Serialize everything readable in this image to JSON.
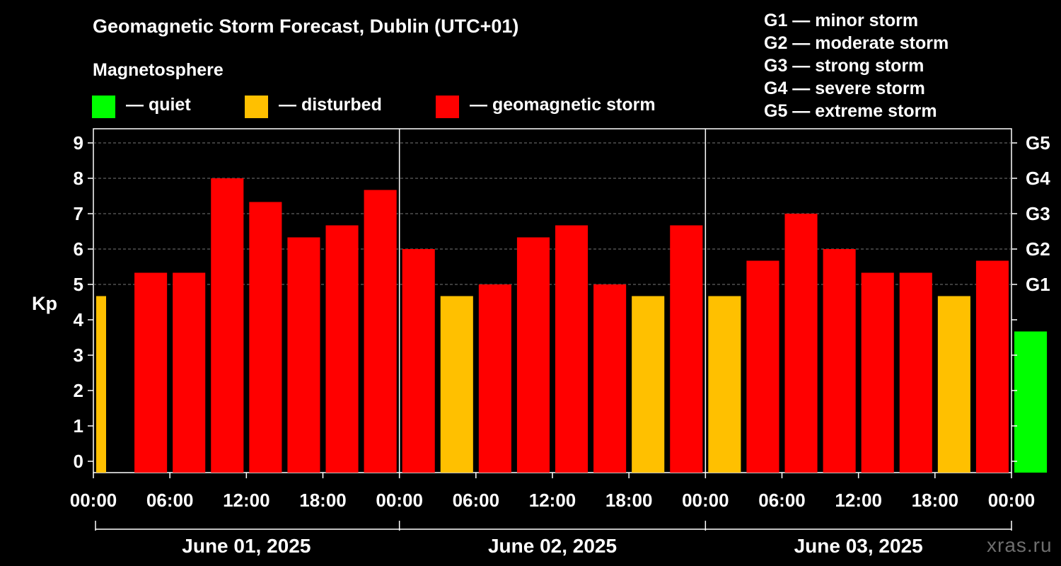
{
  "chart_data": {
    "type": "bar",
    "title": "Geomagnetic Storm Forecast, Dublin (UTC+01)",
    "ylabel": "Kp",
    "ylim": [
      0,
      9
    ],
    "yticks": [
      "0",
      "1",
      "2",
      "3",
      "4",
      "5",
      "6",
      "7",
      "8",
      "9"
    ],
    "right_ticks": [
      {
        "value": 5,
        "label": "G1"
      },
      {
        "value": 6,
        "label": "G2"
      },
      {
        "value": 7,
        "label": "G3"
      },
      {
        "value": 8,
        "label": "G4"
      },
      {
        "value": 9,
        "label": "G5"
      }
    ],
    "xticks": [
      "00:00",
      "06:00",
      "12:00",
      "18:00",
      "00:00",
      "06:00",
      "12:00",
      "18:00",
      "00:00",
      "06:00",
      "12:00",
      "18:00",
      "00:00"
    ],
    "days": [
      "June 01, 2025",
      "June 02, 2025",
      "June 03, 2025"
    ],
    "interval_hours": 3,
    "values": [
      4.67,
      5.33,
      5.33,
      8.0,
      7.33,
      6.33,
      6.67,
      7.67,
      6.0,
      4.67,
      5.0,
      6.33,
      6.67,
      5.0,
      4.67,
      6.67,
      4.67,
      5.67,
      7.0,
      6.0,
      5.33,
      5.33,
      4.67,
      5.67,
      3.67
    ],
    "legend": {
      "heading": "Magnetosphere",
      "items": [
        {
          "label": "— quiet",
          "color": "#00ff00"
        },
        {
          "label": "— disturbed",
          "color": "#ffc000"
        },
        {
          "label": "— geomagnetic storm",
          "color": "#ff0000"
        }
      ]
    },
    "storm_scale": [
      "G1 — minor storm",
      "G2 — moderate storm",
      "G3 — strong storm",
      "G4 — severe storm",
      "G5 — extreme storm"
    ]
  },
  "watermark": "xras.ru"
}
